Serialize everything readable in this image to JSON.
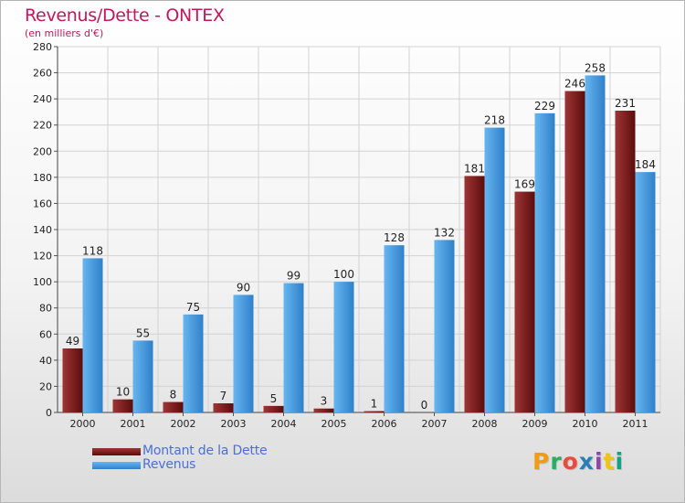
{
  "title": "Revenus/Dette - ONTEX",
  "subtitle": "(en milliers d'€)",
  "logo_text": "Proxiti",
  "colors": {
    "dette": "#7a1a1a",
    "dette_light": "#a33a3a",
    "revenus": "#3a8fd8",
    "revenus_light": "#64b2ee",
    "title": "#c2185b",
    "legend_text": "#4a6fd8"
  },
  "chart_data": {
    "type": "bar",
    "title": "Revenus/Dette - ONTEX",
    "subtitle": "(en milliers d'€)",
    "xlabel": "",
    "ylabel": "",
    "categories": [
      "2000",
      "2001",
      "2002",
      "2003",
      "2004",
      "2005",
      "2006",
      "2007",
      "2008",
      "2009",
      "2010",
      "2011"
    ],
    "series": [
      {
        "name": "Montant de la Dette",
        "values": [
          49,
          10,
          8,
          7,
          5,
          3,
          1,
          0,
          181,
          169,
          246,
          231
        ]
      },
      {
        "name": "Revenus",
        "values": [
          118,
          55,
          75,
          90,
          99,
          100,
          128,
          132,
          218,
          229,
          258,
          184
        ]
      }
    ],
    "ylim": [
      0,
      280
    ],
    "yticks": [
      0,
      20,
      40,
      60,
      80,
      100,
      120,
      140,
      160,
      180,
      200,
      220,
      240,
      260,
      280
    ],
    "grid": true,
    "legend_position": "bottom-left"
  }
}
